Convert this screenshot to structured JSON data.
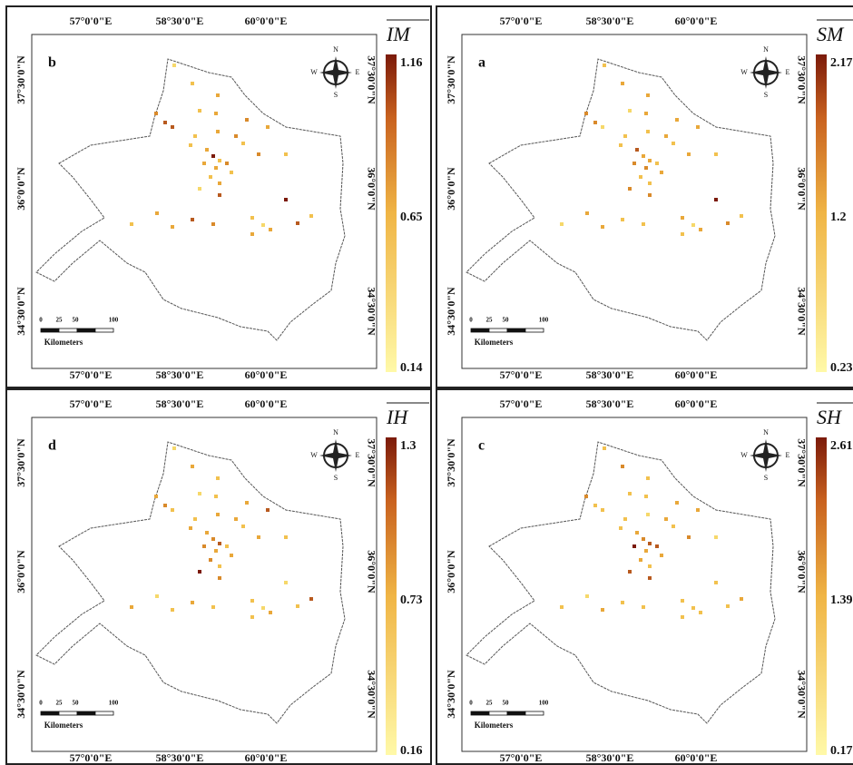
{
  "panels": [
    {
      "label": "b",
      "legend_title": "IM",
      "legend_labels": [
        "1.16",
        "0.65",
        "0.14"
      ]
    },
    {
      "label": "a",
      "legend_title": "SM",
      "legend_labels": [
        "2.17",
        "1.2",
        "0.23"
      ]
    },
    {
      "label": "d",
      "legend_title": "IH",
      "legend_labels": [
        "1.3",
        "0.73",
        "0.16"
      ]
    },
    {
      "label": "c",
      "legend_title": "SH",
      "legend_labels": [
        "2.61",
        "1.39",
        "0.17"
      ]
    }
  ],
  "axes": {
    "lon": [
      "57°0'0\"E",
      "58°30'0\"E",
      "60°0'0\"E"
    ],
    "lat": [
      "37°30'0\"N",
      "36°0'0\"N",
      "34°30'0\"N"
    ]
  },
  "scale_bar": {
    "ticks": [
      "0",
      "25",
      "50",
      "100"
    ],
    "unit": "Kilometers"
  },
  "compass": {
    "north": "N",
    "east": "E",
    "south": "S",
    "west": "W"
  }
}
